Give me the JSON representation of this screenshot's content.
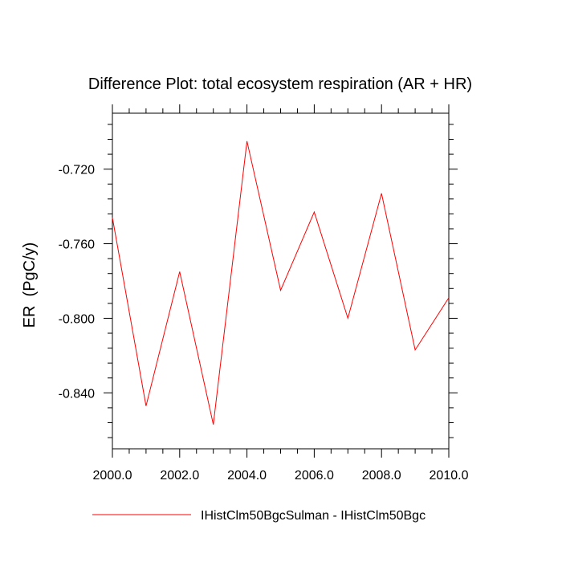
{
  "chart_data": {
    "type": "line",
    "title": "Difference Plot: total ecosystem respiration (AR + HR)",
    "xlabel": "",
    "ylabel": "ER  (PgC/y)",
    "xlim": [
      2000,
      2010
    ],
    "ylim": [
      -0.87,
      -0.69
    ],
    "x_ticks": [
      2000,
      2002,
      2004,
      2006,
      2008,
      2010
    ],
    "x_tick_labels": [
      "2000.0",
      "2002.0",
      "2004.0",
      "2006.0",
      "2008.0",
      "2010.0"
    ],
    "y_ticks": [
      -0.72,
      -0.76,
      -0.8,
      -0.84
    ],
    "y_tick_labels": [
      "-0.720",
      "-0.760",
      "-0.800",
      "-0.840"
    ],
    "grid": false,
    "legend_position": "bottom",
    "series": [
      {
        "name": "IHistClm50BgcSulman - IHistClm50Bgc",
        "color": "#ff0000",
        "x": [
          2000,
          2001,
          2002,
          2003,
          2004,
          2005,
          2006,
          2007,
          2008,
          2009,
          2010
        ],
        "values": [
          -0.746,
          -0.847,
          -0.775,
          -0.857,
          -0.705,
          -0.785,
          -0.743,
          -0.8,
          -0.733,
          -0.817,
          -0.789
        ]
      }
    ]
  }
}
